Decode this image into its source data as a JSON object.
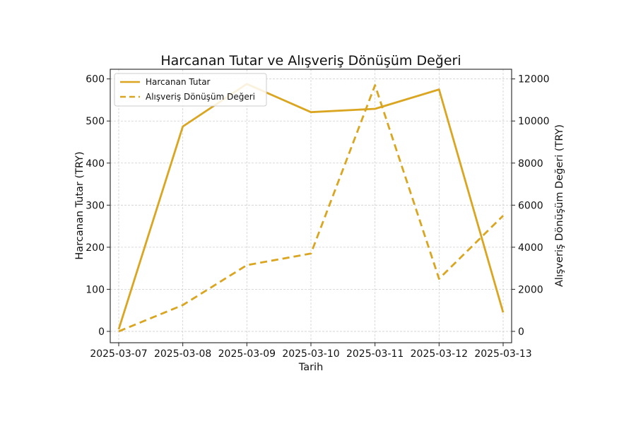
{
  "chart_data": {
    "type": "line",
    "title": "Harcanan Tutar ve Alışveriş Dönüşüm Değeri",
    "xlabel": "Tarih",
    "ylabel_left": "Harcanan Tutar (TRY)",
    "ylabel_right": "Alışveriş Dönüşüm Değeri (TRY)",
    "categories": [
      "2025-03-07",
      "2025-03-08",
      "2025-03-09",
      "2025-03-10",
      "2025-03-11",
      "2025-03-12",
      "2025-03-13"
    ],
    "ylim_left": [
      -27,
      623
    ],
    "ylim_right": [
      -540,
      12460
    ],
    "yticks_left": [
      0,
      100,
      200,
      300,
      400,
      500,
      600
    ],
    "yticks_right": [
      0,
      2000,
      4000,
      6000,
      8000,
      10000,
      12000
    ],
    "grid": true,
    "legend_position": "upper-left",
    "series": [
      {
        "name": "Harcanan Tutar",
        "axis": "left",
        "style": "solid",
        "color": "#DAA520",
        "values": [
          5,
          487,
          588,
          521,
          529,
          575,
          45
        ]
      },
      {
        "name": "Alışveriş Dönüşüm Değeri",
        "axis": "right",
        "style": "dashed",
        "color": "#DAA520",
        "values": [
          0,
          1250,
          3150,
          3700,
          11700,
          2500,
          5500
        ]
      }
    ]
  }
}
